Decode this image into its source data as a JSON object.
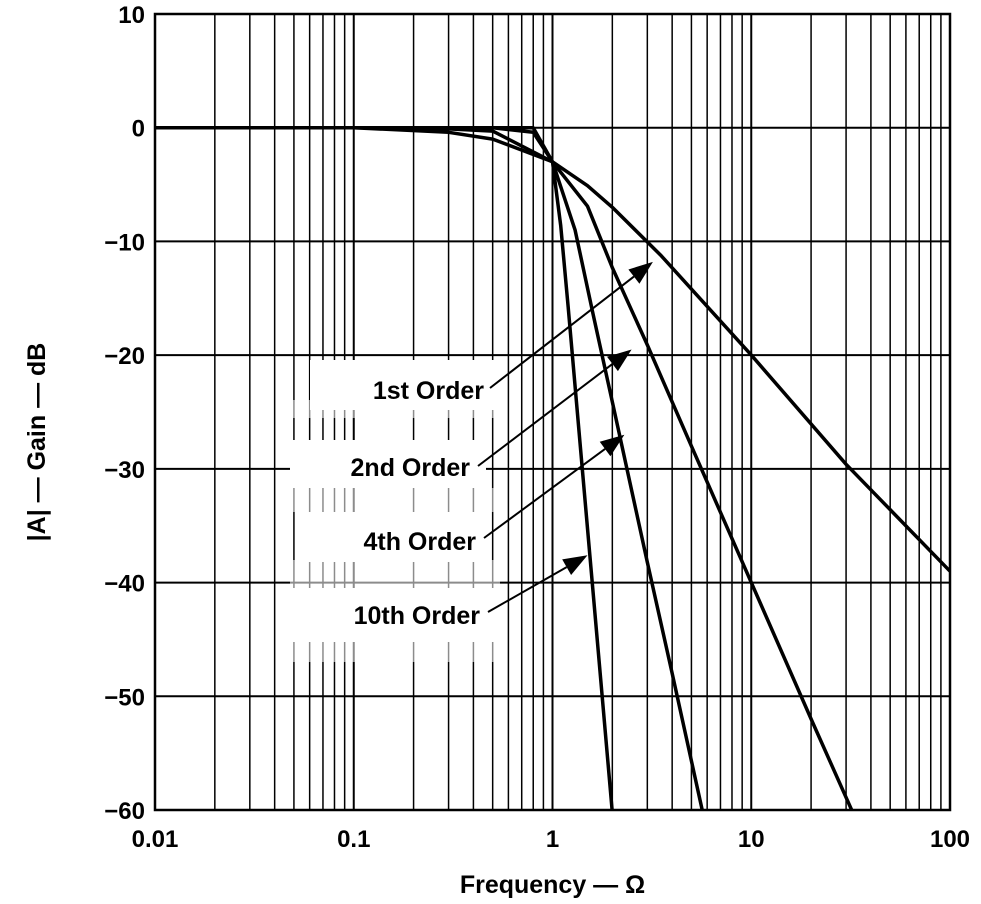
{
  "chart_data": {
    "type": "line",
    "title": "",
    "xlabel": "Frequency — Ω",
    "ylabel": "|A| — Gain — dB",
    "xscale": "log",
    "xlim": [
      0.01,
      100
    ],
    "ylim": [
      -60,
      10
    ],
    "xticks": [
      0.01,
      0.1,
      1,
      10,
      100
    ],
    "xtick_labels": [
      "0.01",
      "0.1",
      "1",
      "10",
      "100"
    ],
    "yticks": [
      10,
      0,
      -10,
      -20,
      -30,
      -40,
      -50,
      -60
    ],
    "ytick_labels": [
      "10",
      "0",
      "−10",
      "−20",
      "−30",
      "−40",
      "−50",
      "−60"
    ],
    "grid": true,
    "legend": "none (inline annotations)",
    "series": [
      {
        "name": "1st Order",
        "order": 1,
        "x": [
          0.01,
          0.1,
          0.3,
          0.5,
          1,
          1.5,
          2,
          3.5,
          10,
          30,
          100
        ],
        "y": [
          0,
          0,
          -0.4,
          -1,
          -3,
          -5.1,
          -7,
          -11.2,
          -20,
          -29.6,
          -39
        ]
      },
      {
        "name": "2nd Order",
        "order": 2,
        "x": [
          0.01,
          0.1,
          0.3,
          0.5,
          1,
          1.5,
          2,
          3,
          5,
          10,
          20,
          36
        ],
        "y": [
          0,
          0,
          -0.1,
          -0.3,
          -3,
          -6.9,
          -12.3,
          -19.1,
          -28,
          -40,
          -52,
          -62
        ]
      },
      {
        "name": "4th Order",
        "order": 4,
        "x": [
          0.01,
          0.1,
          0.3,
          0.5,
          0.8,
          1,
          1.3,
          1.6,
          2,
          3,
          4,
          6
        ],
        "y": [
          0,
          0,
          0,
          0,
          -0.4,
          -3,
          -9,
          -16.4,
          -24.1,
          -38.2,
          -48,
          -62
        ]
      },
      {
        "name": "10th Order",
        "order": 10,
        "x": [
          0.01,
          0.1,
          0.5,
          0.8,
          1,
          1.1,
          1.2,
          1.4,
          1.7,
          2,
          2.15
        ],
        "y": [
          0,
          0,
          0,
          0,
          -3,
          -8.6,
          -15.8,
          -29.2,
          -46.1,
          -60.2,
          -63
        ]
      }
    ],
    "annotations": [
      {
        "text": "1st Order",
        "target": [
          3.2,
          -11.8
        ]
      },
      {
        "text": "2nd Order",
        "target": [
          2.5,
          -19.5
        ]
      },
      {
        "text": "4th Order",
        "target": [
          2.3,
          -27
        ]
      },
      {
        "text": "10th Order",
        "target": [
          1.5,
          -37.6
        ]
      }
    ],
    "colors": {
      "line": "#000000",
      "grid": "#000000",
      "background": "#ffffff"
    }
  }
}
